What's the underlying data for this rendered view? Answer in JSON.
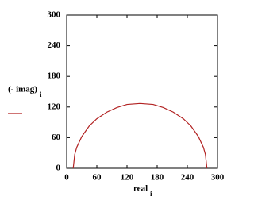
{
  "chart_data": {
    "type": "line",
    "xlabel": "real",
    "xlabel_sub": "i",
    "ylabel": "(- imag)",
    "ylabel_sub": "i",
    "x": [
      13,
      16,
      20,
      30,
      45,
      60,
      80,
      100,
      120,
      146,
      172,
      192,
      212,
      232,
      247,
      262,
      272,
      276,
      279
    ],
    "series": [
      {
        "color": "#b22222",
        "values": [
          0,
          27,
          41,
          62,
          83,
          97,
          110,
          119,
          125,
          127,
          125,
          119,
          110,
          97,
          83,
          62,
          41,
          27,
          0
        ]
      }
    ],
    "xlim": [
      0,
      300
    ],
    "ylim": [
      0,
      300
    ],
    "xticks": [
      0,
      60,
      120,
      180,
      240,
      300
    ],
    "yticks": [
      0,
      60,
      120,
      180,
      240,
      300
    ]
  }
}
